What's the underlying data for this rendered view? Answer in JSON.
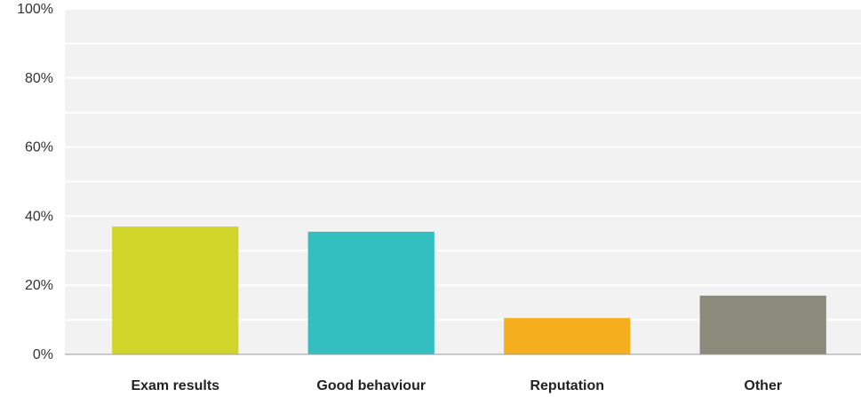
{
  "chart_data": {
    "type": "bar",
    "categories": [
      "Exam results",
      "Good behaviour",
      "Reputation",
      "Other"
    ],
    "values": [
      37,
      35.5,
      10.5,
      17
    ],
    "colors": [
      "#d1d52a",
      "#33bfbf",
      "#f5ae1e",
      "#8b8b7b"
    ],
    "ylim": [
      0,
      100
    ],
    "yticks": [
      0,
      20,
      40,
      60,
      80,
      100
    ],
    "ytick_labels": [
      "0%",
      "20%",
      "40%",
      "60%",
      "80%",
      "100%"
    ],
    "title": "",
    "xlabel": "",
    "ylabel": "",
    "grid": true,
    "background": "#f2f2f2",
    "gridline_color": "#ffffff"
  }
}
